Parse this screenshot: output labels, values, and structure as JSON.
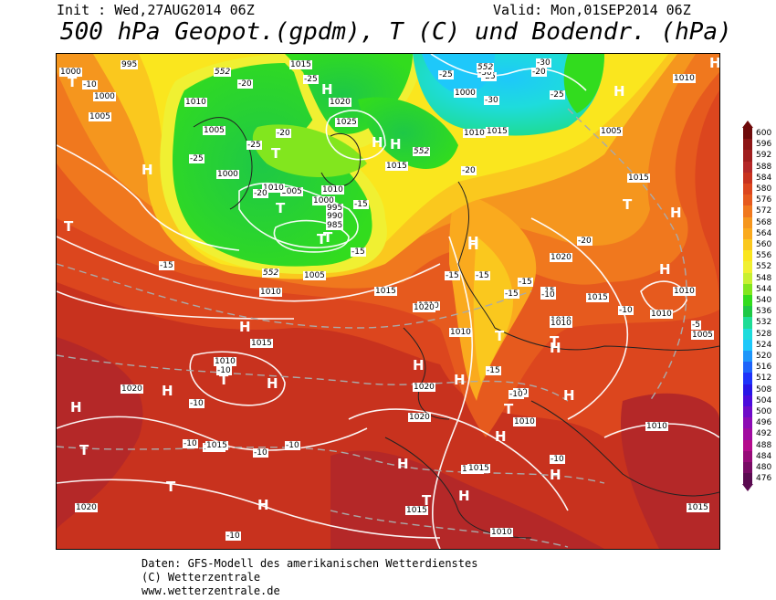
{
  "header": {
    "init": "Init : Wed,27AUG2014 06Z",
    "valid": "Valid: Mon,01SEP2014 06Z",
    "title": "500 hPa Geopot.(gpdm), T (C) und Bodendr. (hPa)"
  },
  "map": {
    "pressure_labels": [
      "995",
      "1000",
      "1000",
      "1005",
      "1010",
      "1005",
      "1000",
      "1005",
      "1010",
      "1010",
      "1000",
      "995",
      "990",
      "985",
      "1005",
      "1010",
      "1015",
      "1020",
      "1025",
      "1015",
      "1015",
      "1010",
      "1000",
      "1010",
      "1015",
      "1020",
      "1015",
      "1005",
      "1010",
      "1020",
      "1020",
      "1015",
      "1010",
      "1015",
      "1020",
      "1010",
      "1015",
      "1010",
      "1010",
      "1010",
      "1005",
      "1020",
      "1015",
      "1010",
      "1015",
      "1020",
      "1015",
      "1010",
      "1010",
      "1010",
      "1015",
      "1010"
    ],
    "temp_labels": [
      "-10",
      "-20",
      "-25",
      "-25",
      "-20",
      "-25",
      "-15",
      "-25",
      "-25",
      "-20",
      "-30",
      "-30",
      "-25",
      "-30",
      "-20",
      "-15",
      "-20",
      "-15",
      "-15",
      "-20",
      "-15",
      "-15",
      "-15",
      "-10",
      "-15",
      "-10",
      "-10",
      "-10",
      "-10",
      "-10",
      "-5",
      "-10",
      "-10",
      "-10",
      "-10",
      "-10",
      "-15"
    ],
    "geopot_labels": [
      "552",
      "552",
      "552",
      "552"
    ],
    "pressure_centers": [
      "T",
      "H",
      "H",
      "H",
      "H",
      "T",
      "T",
      "T",
      "T",
      "H",
      "T",
      "H",
      "H",
      "T",
      "H",
      "H",
      "H",
      "H",
      "T",
      "H",
      "H",
      "H",
      "T",
      "H",
      "T",
      "H",
      "H",
      "H",
      "T",
      "T",
      "T",
      "H",
      "H",
      "T",
      "H",
      "H",
      "H"
    ]
  },
  "legend": {
    "levels": [
      "600",
      "596",
      "592",
      "588",
      "584",
      "580",
      "576",
      "572",
      "568",
      "564",
      "560",
      "556",
      "552",
      "548",
      "544",
      "540",
      "536",
      "532",
      "528",
      "524",
      "520",
      "516",
      "512",
      "508",
      "504",
      "500",
      "496",
      "492",
      "488",
      "484",
      "480",
      "476"
    ],
    "colors": [
      "#6e0a0a",
      "#8c1414",
      "#a01e1e",
      "#b42828",
      "#c8321e",
      "#dc461e",
      "#e65a1e",
      "#f0781e",
      "#f5961e",
      "#faaa1e",
      "#fac81e",
      "#fae61e",
      "#f0f032",
      "#c8f032",
      "#82e61e",
      "#32dc1e",
      "#1ec846",
      "#1edc96",
      "#1edcdc",
      "#1ec8fa",
      "#1e96fa",
      "#1e64fa",
      "#1e32fa",
      "#2814e6",
      "#4b0adc",
      "#6e0ac8",
      "#8c0ab4",
      "#a00aa0",
      "#b40a8c",
      "#960a78",
      "#780a64",
      "#5a0a50"
    ]
  },
  "footer": {
    "line1": "Daten: GFS-Modell des amerikanischen Wetterdienstes",
    "line2": "(C) Wetterzentrale",
    "line3": "www.wetterzentrale.de"
  }
}
